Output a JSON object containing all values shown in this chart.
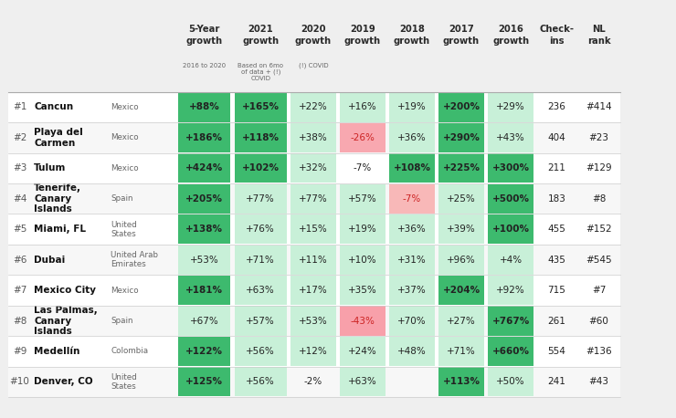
{
  "ranks": [
    "#1",
    "#2",
    "#3",
    "#4",
    "#5",
    "#6",
    "#7",
    "#8",
    "#9",
    "#10"
  ],
  "destinations": [
    "Cancun",
    "Playa del\nCarmen",
    "Tulum",
    "Tenerife,\nCanary\nIslands",
    "Miami, FL",
    "Dubai",
    "Mexico City",
    "Las Palmas,\nCanary\nIslands",
    "Medellín",
    "Denver, CO"
  ],
  "countries": [
    "Mexico",
    "Mexico",
    "Mexico",
    "Spain",
    "United\nStates",
    "United Arab\nEmirates",
    "Mexico",
    "Spain",
    "Colombia",
    "United\nStates"
  ],
  "data": [
    [
      "+88%",
      "+165%",
      "+22%",
      "+16%",
      "+19%",
      "+200%",
      "+29%",
      "236",
      "#414"
    ],
    [
      "+186%",
      "+118%",
      "+38%",
      "-26%",
      "+36%",
      "+290%",
      "+43%",
      "404",
      "#23"
    ],
    [
      "+424%",
      "+102%",
      "+32%",
      "-7%",
      "+108%",
      "+225%",
      "+300%",
      "211",
      "#129"
    ],
    [
      "+205%",
      "+77%",
      "+77%",
      "+57%",
      "-7%",
      "+25%",
      "+500%",
      "183",
      "#8"
    ],
    [
      "+138%",
      "+76%",
      "+15%",
      "+19%",
      "+36%",
      "+39%",
      "+100%",
      "455",
      "#152"
    ],
    [
      "+53%",
      "+71%",
      "+11%",
      "+10%",
      "+31%",
      "+96%",
      "+4%",
      "435",
      "#545"
    ],
    [
      "+181%",
      "+63%",
      "+17%",
      "+35%",
      "+37%",
      "+204%",
      "+92%",
      "715",
      "#7"
    ],
    [
      "+67%",
      "+57%",
      "+53%",
      "-43%",
      "+70%",
      "+27%",
      "+767%",
      "261",
      "#60"
    ],
    [
      "+122%",
      "+56%",
      "+12%",
      "+24%",
      "+48%",
      "+71%",
      "+660%",
      "554",
      "#136"
    ],
    [
      "+125%",
      "+56%",
      "-2%",
      "+63%",
      "",
      "+113%",
      "+50%",
      "241",
      "#43"
    ]
  ],
  "cell_colors": [
    [
      "#3dba6e",
      "#3dba6e",
      "#c8f0d8",
      "#c8f0d8",
      "#c8f0d8",
      "#3dba6e",
      "#c8f0d8",
      "none",
      "none"
    ],
    [
      "#3dba6e",
      "#3dba6e",
      "#c8f0d8",
      "#f8a8b0",
      "#c8f0d8",
      "#3dba6e",
      "#c8f0d8",
      "none",
      "none"
    ],
    [
      "#3dba6e",
      "#3dba6e",
      "#c8f0d8",
      "none",
      "#3dba6e",
      "#3dba6e",
      "#3dba6e",
      "none",
      "none"
    ],
    [
      "#3dba6e",
      "#c8f0d8",
      "#c8f0d8",
      "#c8f0d8",
      "#f8b8b8",
      "#c8f0d8",
      "#3dba6e",
      "none",
      "none"
    ],
    [
      "#3dba6e",
      "#c8f0d8",
      "#c8f0d8",
      "#c8f0d8",
      "#c8f0d8",
      "#c8f0d8",
      "#3dba6e",
      "none",
      "none"
    ],
    [
      "#c8f0d8",
      "#c8f0d8",
      "#c8f0d8",
      "#c8f0d8",
      "#c8f0d8",
      "#c8f0d8",
      "#c8f0d8",
      "none",
      "none"
    ],
    [
      "#3dba6e",
      "#c8f0d8",
      "#c8f0d8",
      "#c8f0d8",
      "#c8f0d8",
      "#3dba6e",
      "#c8f0d8",
      "none",
      "none"
    ],
    [
      "#c8f0d8",
      "#c8f0d8",
      "#c8f0d8",
      "#f8a0aa",
      "#c8f0d8",
      "#c8f0d8",
      "#3dba6e",
      "none",
      "none"
    ],
    [
      "#3dba6e",
      "#c8f0d8",
      "#c8f0d8",
      "#c8f0d8",
      "#c8f0d8",
      "#c8f0d8",
      "#3dba6e",
      "none",
      "none"
    ],
    [
      "#3dba6e",
      "#c8f0d8",
      "none",
      "#c8f0d8",
      "none",
      "#3dba6e",
      "#c8f0d8",
      "none",
      "none"
    ]
  ],
  "header_mains": [
    "5-Year\ngrowth",
    "2021\ngrowth",
    "2020\ngrowth",
    "2019\ngrowth",
    "2018\ngrowth",
    "2017\ngrowth",
    "2016\ngrowth",
    "Check-\nins",
    "NL\nrank"
  ],
  "header_subs": [
    "2016 to 2020",
    "Based on 6mo\nof data + (!)\nCOVID",
    "(!) COVID",
    "",
    "",
    "",
    "",
    "",
    ""
  ],
  "bg_color": "#efefef",
  "row_colors": [
    "#ffffff",
    "#f7f7f7"
  ]
}
